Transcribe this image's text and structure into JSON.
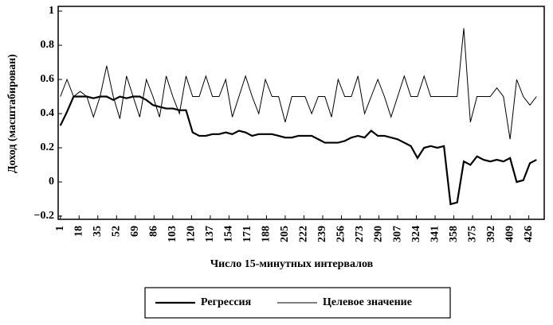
{
  "chart_data": {
    "type": "line",
    "x_label": "Число 15-минутных интервалов",
    "y_label": "Доход (масштабирован)",
    "xlim": [
      -1,
      440
    ],
    "ylim": [
      -0.2,
      1
    ],
    "xticks": [
      1,
      18,
      35,
      52,
      69,
      86,
      103,
      120,
      137,
      154,
      171,
      188,
      205,
      222,
      239,
      256,
      273,
      290,
      307,
      324,
      341,
      358,
      375,
      392,
      409,
      426
    ],
    "yticks": [
      1,
      0.8,
      0.6,
      0.4,
      0.2,
      0,
      {
        "value": -0.2,
        "label": "−0.2"
      }
    ],
    "x": [
      1,
      7,
      13,
      19,
      25,
      31,
      37,
      43,
      49,
      55,
      61,
      67,
      73,
      79,
      85,
      91,
      97,
      103,
      109,
      115,
      121,
      127,
      133,
      139,
      145,
      151,
      157,
      163,
      169,
      175,
      181,
      187,
      193,
      199,
      205,
      211,
      217,
      223,
      229,
      235,
      241,
      247,
      253,
      259,
      265,
      271,
      277,
      283,
      289,
      295,
      301,
      307,
      313,
      319,
      325,
      331,
      337,
      343,
      349,
      355,
      361,
      367,
      373,
      379,
      385,
      391,
      397,
      403,
      409,
      415,
      421,
      427,
      433
    ],
    "legend": "bottom",
    "series": [
      {
        "name": "Регрессия",
        "color": "#000000",
        "values": [
          0.33,
          0.41,
          0.5,
          0.5,
          0.5,
          0.49,
          0.5,
          0.5,
          0.48,
          0.5,
          0.49,
          0.5,
          0.5,
          0.48,
          0.45,
          0.44,
          0.43,
          0.43,
          0.42,
          0.42,
          0.29,
          0.27,
          0.27,
          0.28,
          0.28,
          0.29,
          0.28,
          0.3,
          0.29,
          0.27,
          0.28,
          0.28,
          0.28,
          0.27,
          0.26,
          0.26,
          0.27,
          0.27,
          0.27,
          0.25,
          0.23,
          0.23,
          0.23,
          0.24,
          0.26,
          0.27,
          0.26,
          0.3,
          0.27,
          0.27,
          0.26,
          0.25,
          0.23,
          0.21,
          0.14,
          0.2,
          0.21,
          0.2,
          0.21,
          -0.13,
          -0.12,
          0.12,
          0.1,
          0.15,
          0.13,
          0.12,
          0.13,
          0.12,
          0.14,
          0.0,
          0.01,
          0.11,
          0.13
        ]
      },
      {
        "name": "Целевое значение",
        "color": "#000000",
        "values": [
          0.5,
          0.6,
          0.5,
          0.53,
          0.5,
          0.38,
          0.5,
          0.68,
          0.5,
          0.37,
          0.62,
          0.5,
          0.38,
          0.6,
          0.5,
          0.38,
          0.62,
          0.5,
          0.4,
          0.62,
          0.5,
          0.5,
          0.62,
          0.5,
          0.5,
          0.6,
          0.38,
          0.5,
          0.62,
          0.5,
          0.4,
          0.6,
          0.5,
          0.5,
          0.35,
          0.5,
          0.5,
          0.5,
          0.4,
          0.5,
          0.5,
          0.38,
          0.6,
          0.5,
          0.5,
          0.62,
          0.4,
          0.5,
          0.6,
          0.5,
          0.38,
          0.5,
          0.62,
          0.5,
          0.5,
          0.62,
          0.5,
          0.5,
          0.5,
          0.5,
          0.5,
          0.9,
          0.35,
          0.5,
          0.5,
          0.5,
          0.55,
          0.5,
          0.25,
          0.6,
          0.5,
          0.45,
          0.5
        ]
      }
    ]
  }
}
